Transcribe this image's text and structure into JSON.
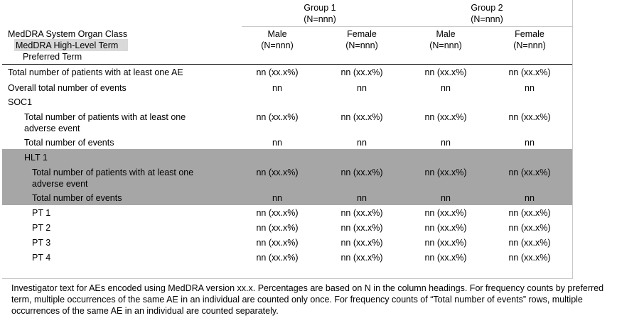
{
  "header": {
    "groups": [
      {
        "name": "Group 1",
        "n": "(N=nnn)"
      },
      {
        "name": "Group 2",
        "n": "(N=nnn)"
      }
    ],
    "stub": {
      "soc": "MedDRA System Organ Class",
      "hlt": "MedDRA High-Level Term",
      "pt": "Preferred Term"
    },
    "columns": [
      {
        "sex": "Male",
        "n": "(N=nnn)"
      },
      {
        "sex": "Female",
        "n": "(N=nnn)"
      },
      {
        "sex": "Male",
        "n": "(N=nnn)"
      },
      {
        "sex": "Female",
        "n": "(N=nnn)"
      }
    ]
  },
  "rows": [
    {
      "label": "Total number of patients with at least one AE",
      "values": [
        "nn (xx.x%)",
        "nn (xx.x%)",
        "nn (xx.x%)",
        "nn (xx.x%)"
      ]
    },
    {
      "label": "Overall total number of events",
      "values": [
        "nn",
        "nn",
        "nn",
        "nn"
      ]
    },
    {
      "label": "SOC1",
      "values": []
    },
    {
      "label_line1": "Total number of patients with at least one",
      "label_line2": "adverse event",
      "values": [
        "nn (xx.x%)",
        "nn (xx.x%)",
        "nn (xx.x%)",
        "nn (xx.x%)"
      ]
    },
    {
      "label": "Total number of events",
      "values": [
        "nn",
        "nn",
        "nn",
        "nn"
      ]
    },
    {
      "label": "HLT 1",
      "values": []
    },
    {
      "label_line1": "Total number of patients with at least one",
      "label_line2": "adverse event",
      "values": [
        "nn (xx.x%)",
        "nn (xx.x%)",
        "nn (xx.x%)",
        "nn (xx.x%)"
      ]
    },
    {
      "label": "Total number of events",
      "values": [
        "nn",
        "nn",
        "nn",
        "nn"
      ]
    },
    {
      "label": "PT 1",
      "values": [
        "nn (xx.x%)",
        "nn (xx.x%)",
        "nn (xx.x%)",
        "nn (xx.x%)"
      ]
    },
    {
      "label": "PT 2",
      "values": [
        "nn (xx.x%)",
        "nn (xx.x%)",
        "nn (xx.x%)",
        "nn (xx.x%)"
      ]
    },
    {
      "label": "PT 3",
      "values": [
        "nn (xx.x%)",
        "nn (xx.x%)",
        "nn (xx.x%)",
        "nn (xx.x%)"
      ]
    },
    {
      "label": "PT 4",
      "values": [
        "nn (xx.x%)",
        "nn (xx.x%)",
        "nn (xx.x%)",
        "nn (xx.x%)"
      ]
    }
  ],
  "footnote": "Investigator text for AEs encoded using MedDRA version xx.x.  Percentages are based on N in the column headings. For frequency counts by preferred term, multiple occurrences of the same AE in an individual are counted only once.  For frequency counts of “Total number of events” rows, multiple occurrences of the same AE in an individual are counted separately.",
  "colors": {
    "hlt_shade": "#a6a6a6",
    "hlt_label_highlight": "#d9d9d9",
    "rule": "#000000"
  }
}
